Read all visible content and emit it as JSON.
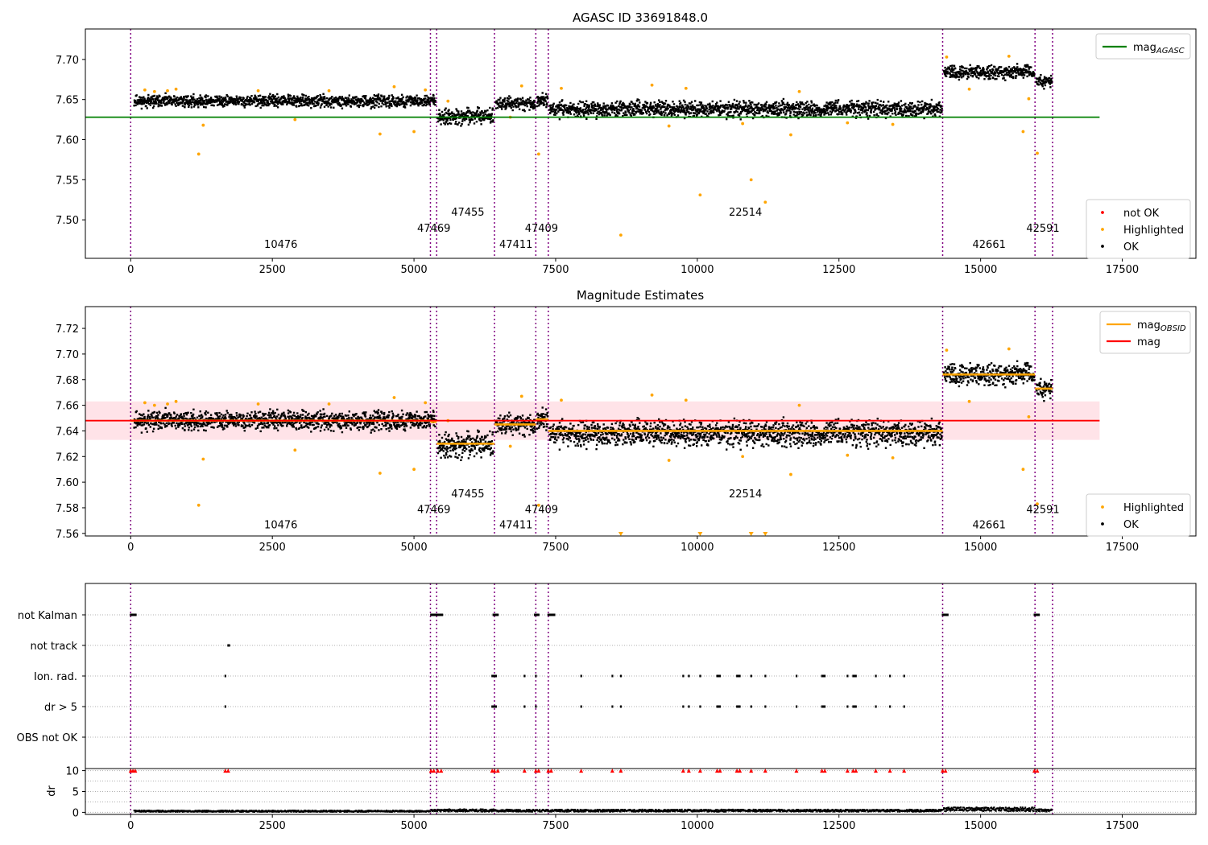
{
  "chart_data": [
    {
      "panel": "top",
      "type": "scatter",
      "title": "AGASC ID 33691848.0",
      "xlim": [
        -800,
        18800
      ],
      "ylim": [
        7.452,
        7.738
      ],
      "x_ticks": [
        0,
        2500,
        5000,
        7500,
        10000,
        12500,
        15000,
        17500
      ],
      "x_tick_labels": [
        "0",
        "2500",
        "5000",
        "7500",
        "10000",
        "12500",
        "15000",
        "17500"
      ],
      "y_ticks": [
        7.5,
        7.55,
        7.6,
        7.65,
        7.7
      ],
      "y_tick_labels": [
        "7.50",
        "7.55",
        "7.60",
        "7.65",
        "7.70"
      ],
      "grid": false,
      "obs_boundaries": [
        0,
        5290,
        5400,
        6420,
        7150,
        7370,
        14330,
        15960,
        16270
      ],
      "obs_labels": [
        {
          "text": "10476",
          "x": 2650,
          "y": 7.465
        },
        {
          "text": "47469",
          "x": 5350,
          "y": 7.485
        },
        {
          "text": "47455",
          "x": 5950,
          "y": 7.505
        },
        {
          "text": "47411",
          "x": 6800,
          "y": 7.465
        },
        {
          "text": "47409",
          "x": 7250,
          "y": 7.485
        },
        {
          "text": "22514",
          "x": 10850,
          "y": 7.505
        },
        {
          "text": "42661",
          "x": 15150,
          "y": 7.465
        },
        {
          "text": "42591",
          "x": 16100,
          "y": 7.485
        }
      ],
      "ok_segments": [
        {
          "x0": 60,
          "x1": 5380,
          "center": 7.648,
          "spread": 0.008
        },
        {
          "x0": 5420,
          "x1": 6400,
          "center": 7.629,
          "spread": 0.011
        },
        {
          "x0": 6440,
          "x1": 7140,
          "center": 7.645,
          "spread": 0.009
        },
        {
          "x0": 7170,
          "x1": 7360,
          "center": 7.649,
          "spread": 0.009
        },
        {
          "x0": 7390,
          "x1": 14320,
          "center": 7.638,
          "spread": 0.011
        },
        {
          "x0": 14350,
          "x1": 15950,
          "center": 7.684,
          "spread": 0.009
        },
        {
          "x0": 15980,
          "x1": 16260,
          "center": 7.673,
          "spread": 0.008
        }
      ],
      "highlighted_points": [
        [
          250,
          7.662
        ],
        [
          420,
          7.66
        ],
        [
          650,
          7.661
        ],
        [
          800,
          7.663
        ],
        [
          1200,
          7.582
        ],
        [
          1280,
          7.618
        ],
        [
          2250,
          7.661
        ],
        [
          2900,
          7.625
        ],
        [
          3500,
          7.661
        ],
        [
          4400,
          7.607
        ],
        [
          4650,
          7.666
        ],
        [
          5000,
          7.61
        ],
        [
          5200,
          7.662
        ],
        [
          5600,
          7.648
        ],
        [
          6700,
          7.628
        ],
        [
          6900,
          7.667
        ],
        [
          7200,
          7.582
        ],
        [
          7600,
          7.664
        ],
        [
          8650,
          7.481
        ],
        [
          9200,
          7.668
        ],
        [
          9500,
          7.617
        ],
        [
          9800,
          7.664
        ],
        [
          10050,
          7.531
        ],
        [
          10800,
          7.62
        ],
        [
          10950,
          7.55
        ],
        [
          11200,
          7.522
        ],
        [
          11650,
          7.606
        ],
        [
          11800,
          7.66
        ],
        [
          12650,
          7.621
        ],
        [
          13450,
          7.619
        ],
        [
          14400,
          7.703
        ],
        [
          14800,
          7.663
        ],
        [
          15500,
          7.704
        ],
        [
          15750,
          7.61
        ],
        [
          15850,
          7.651
        ],
        [
          16000,
          7.583
        ]
      ],
      "series": [
        {
          "name": "mag_AGASC",
          "type": "hline",
          "y": 7.628,
          "x0": -800,
          "x1": 17100,
          "color": "#008000"
        }
      ],
      "legends": [
        {
          "entries": [
            {
              "label": "mag",
              "sub": "AGASC",
              "kind": "line",
              "color": "#008000"
            }
          ],
          "position": "top-right"
        },
        {
          "entries": [
            {
              "label": "not OK",
              "kind": "dot",
              "color": "#ff0000"
            },
            {
              "label": "Highlighted",
              "kind": "dot",
              "color": "#ffa500"
            },
            {
              "label": "OK",
              "kind": "dot",
              "color": "#000000"
            }
          ],
          "position": "lower-right"
        }
      ]
    },
    {
      "panel": "middle",
      "type": "scatter",
      "title": "Magnitude Estimates",
      "xlim": [
        -800,
        18800
      ],
      "ylim": [
        7.558,
        7.737
      ],
      "x_ticks": [
        0,
        2500,
        5000,
        7500,
        10000,
        12500,
        15000,
        17500
      ],
      "x_tick_labels": [
        "0",
        "2500",
        "5000",
        "7500",
        "10000",
        "12500",
        "15000",
        "17500"
      ],
      "y_ticks": [
        7.56,
        7.58,
        7.6,
        7.62,
        7.64,
        7.66,
        7.68,
        7.7,
        7.72
      ],
      "y_tick_labels": [
        "7.56",
        "7.58",
        "7.60",
        "7.62",
        "7.64",
        "7.66",
        "7.68",
        "7.70",
        "7.72"
      ],
      "grid": false,
      "band": {
        "y0": 7.633,
        "y1": 7.663,
        "x0": -800,
        "x1": 17100,
        "color": "#ffc0cb"
      },
      "obs_boundaries": [
        0,
        5290,
        5400,
        6420,
        7150,
        7370,
        14330,
        15960,
        16270
      ],
      "obs_labels": [
        {
          "text": "10476",
          "x": 2650,
          "y": 7.564
        },
        {
          "text": "47469",
          "x": 5350,
          "y": 7.576
        },
        {
          "text": "47455",
          "x": 5950,
          "y": 7.588
        },
        {
          "text": "47411",
          "x": 6800,
          "y": 7.564
        },
        {
          "text": "47409",
          "x": 7250,
          "y": 7.576
        },
        {
          "text": "22514",
          "x": 10850,
          "y": 7.588
        },
        {
          "text": "42661",
          "x": 15150,
          "y": 7.564
        },
        {
          "text": "42591",
          "x": 16100,
          "y": 7.576
        }
      ],
      "ok_segments": [
        {
          "x0": 60,
          "x1": 5380,
          "center": 7.648,
          "spread": 0.008
        },
        {
          "x0": 5420,
          "x1": 6400,
          "center": 7.629,
          "spread": 0.011
        },
        {
          "x0": 6440,
          "x1": 7140,
          "center": 7.645,
          "spread": 0.009
        },
        {
          "x0": 7170,
          "x1": 7360,
          "center": 7.649,
          "spread": 0.009
        },
        {
          "x0": 7390,
          "x1": 14320,
          "center": 7.638,
          "spread": 0.011
        },
        {
          "x0": 14350,
          "x1": 15950,
          "center": 7.684,
          "spread": 0.009
        },
        {
          "x0": 15980,
          "x1": 16260,
          "center": 7.673,
          "spread": 0.008
        }
      ],
      "highlighted_points": [
        [
          250,
          7.662
        ],
        [
          420,
          7.66
        ],
        [
          650,
          7.661
        ],
        [
          800,
          7.663
        ],
        [
          1200,
          7.582
        ],
        [
          1280,
          7.618
        ],
        [
          2250,
          7.661
        ],
        [
          2900,
          7.625
        ],
        [
          3500,
          7.661
        ],
        [
          4400,
          7.607
        ],
        [
          4650,
          7.666
        ],
        [
          5000,
          7.61
        ],
        [
          5200,
          7.662
        ],
        [
          5600,
          7.648
        ],
        [
          6700,
          7.628
        ],
        [
          6900,
          7.667
        ],
        [
          7200,
          7.582
        ],
        [
          7600,
          7.664
        ],
        [
          9200,
          7.668
        ],
        [
          9500,
          7.617
        ],
        [
          9800,
          7.664
        ],
        [
          10800,
          7.62
        ],
        [
          11650,
          7.606
        ],
        [
          11800,
          7.66
        ],
        [
          12650,
          7.621
        ],
        [
          13450,
          7.619
        ],
        [
          14400,
          7.703
        ],
        [
          14800,
          7.663
        ],
        [
          15500,
          7.704
        ],
        [
          15750,
          7.61
        ],
        [
          15850,
          7.651
        ],
        [
          16000,
          7.583
        ]
      ],
      "offscale_markers": [
        8650,
        10050,
        10950,
        11200
      ],
      "series": [
        {
          "name": "mag_OBSID",
          "type": "steps",
          "color": "#ffa500",
          "segments": [
            {
              "x0": 0,
              "x1": 5290,
              "y": 7.648
            },
            {
              "x0": 5290,
              "x1": 5400,
              "y": 7.647
            },
            {
              "x0": 5400,
              "x1": 6420,
              "y": 7.63
            },
            {
              "x0": 6420,
              "x1": 7150,
              "y": 7.645
            },
            {
              "x0": 7150,
              "x1": 7370,
              "y": 7.649
            },
            {
              "x0": 7370,
              "x1": 14330,
              "y": 7.64
            },
            {
              "x0": 14330,
              "x1": 15960,
              "y": 7.684
            },
            {
              "x0": 15960,
              "x1": 16270,
              "y": 7.673
            }
          ]
        },
        {
          "name": "mag",
          "type": "hline",
          "y": 7.648,
          "x0": -800,
          "x1": 17100,
          "color": "#ff0000"
        }
      ],
      "legends": [
        {
          "entries": [
            {
              "label": "mag",
              "sub": "OBSID",
              "kind": "line",
              "color": "#ffa500"
            },
            {
              "label": "mag",
              "kind": "line",
              "color": "#ff0000"
            }
          ],
          "position": "top-right"
        },
        {
          "entries": [
            {
              "label": "Highlighted",
              "kind": "dot",
              "color": "#ffa500"
            },
            {
              "label": "OK",
              "kind": "dot",
              "color": "#000000"
            }
          ],
          "position": "lower-right"
        }
      ]
    },
    {
      "panel": "flags",
      "type": "scatter",
      "xlim": [
        -800,
        18800
      ],
      "categories": [
        "not Kalman",
        "not track",
        "Ion. rad.",
        "dr > 5",
        "OBS not OK"
      ],
      "grid": true,
      "obs_boundaries": [
        0,
        5290,
        5400,
        6420,
        7150,
        7370,
        14330,
        15960,
        16270
      ],
      "flags": {
        "not Kalman": [
          [
            0,
            90
          ],
          [
            5300,
            5500
          ],
          [
            6400,
            6480
          ],
          [
            7130,
            7200
          ],
          [
            7370,
            7480
          ],
          [
            14330,
            14420
          ],
          [
            15950,
            16030
          ]
        ],
        "not track": [
          [
            1720,
            1740
          ]
        ],
        "Ion. rad.": [
          [
            1670
          ],
          [
            6380,
            6450
          ],
          [
            6950
          ],
          [
            7150
          ],
          [
            7950
          ],
          [
            8500
          ],
          [
            8650
          ],
          [
            9750
          ],
          [
            9850
          ],
          [
            10050
          ],
          [
            10350,
            10400
          ],
          [
            10700,
            10750
          ],
          [
            10950
          ],
          [
            11200
          ],
          [
            11750
          ],
          [
            12200,
            12250
          ],
          [
            12650
          ],
          [
            12750,
            12800
          ],
          [
            13150
          ],
          [
            13400
          ],
          [
            13650
          ]
        ],
        "dr > 5": [
          [
            1670
          ],
          [
            6380,
            6450
          ],
          [
            6950
          ],
          [
            7150
          ],
          [
            7950
          ],
          [
            8500
          ],
          [
            8650
          ],
          [
            9750
          ],
          [
            9850
          ],
          [
            10050
          ],
          [
            10350,
            10400
          ],
          [
            10700,
            10750
          ],
          [
            10950
          ],
          [
            11200
          ],
          [
            11750
          ],
          [
            12200,
            12250
          ],
          [
            12650
          ],
          [
            12750,
            12800
          ],
          [
            13150
          ],
          [
            13400
          ],
          [
            13650
          ]
        ],
        "OBS not OK": []
      }
    },
    {
      "panel": "dr",
      "type": "scatter",
      "ylabel": "dr",
      "xlim": [
        -800,
        18800
      ],
      "ylim": [
        -0.5,
        10.5
      ],
      "x_ticks": [
        0,
        2500,
        5000,
        7500,
        10000,
        12500,
        15000,
        17500
      ],
      "x_tick_labels": [
        "0",
        "2500",
        "5000",
        "7500",
        "10000",
        "12500",
        "15000",
        "17500"
      ],
      "y_ticks": [
        0,
        5,
        10
      ],
      "y_tick_labels": [
        "0",
        "5",
        "10"
      ],
      "grid": true,
      "obs_boundaries": [
        0,
        5290,
        5400,
        6420,
        7150,
        7370,
        14330,
        15960,
        16270
      ],
      "dr_segments": [
        {
          "x0": 60,
          "x1": 5290,
          "level": 0.3
        },
        {
          "x0": 5300,
          "x1": 6420,
          "level": 0.5
        },
        {
          "x0": 6430,
          "x1": 14330,
          "level": 0.45
        },
        {
          "x0": 14340,
          "x1": 15950,
          "level": 0.8
        },
        {
          "x0": 15960,
          "x1": 16260,
          "level": 0.5
        }
      ],
      "capped_x": [
        0,
        40,
        80,
        1670,
        1720,
        5300,
        5350,
        5420,
        5480,
        6380,
        6420,
        6480,
        6950,
        7150,
        7200,
        7370,
        7420,
        7950,
        8500,
        8650,
        9750,
        9850,
        10050,
        10350,
        10400,
        10700,
        10750,
        10950,
        11200,
        11750,
        12200,
        12250,
        12650,
        12750,
        12800,
        13150,
        13400,
        13650,
        14330,
        14380,
        15950,
        16000
      ]
    }
  ]
}
